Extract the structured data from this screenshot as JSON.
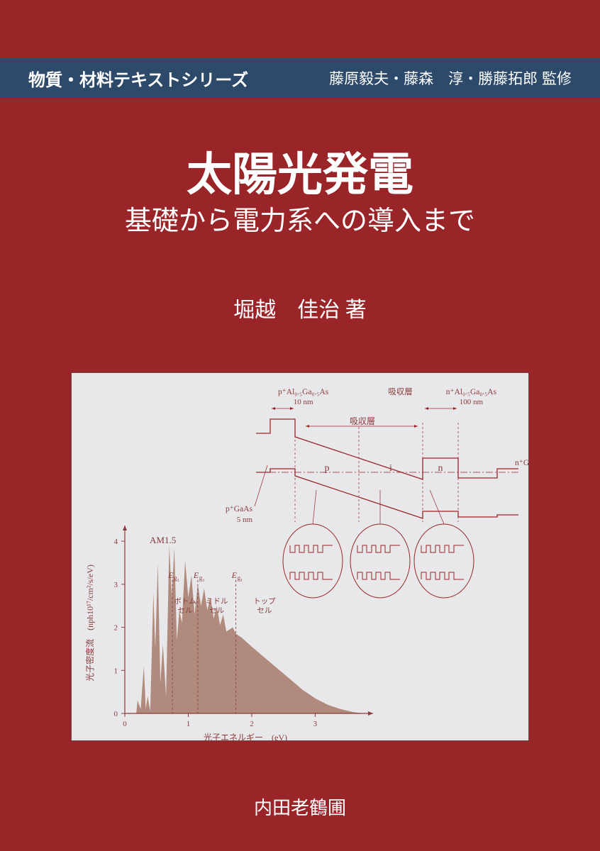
{
  "header": {
    "series": "物質・材料テキストシリーズ",
    "supervisors": "藤原毅夫・藤森　淳・勝藤拓郎 監修"
  },
  "title": "太陽光発電",
  "subtitle": "基礎から電力系への導入まで",
  "author": "堀越　佳治 著",
  "publisher": "内田老鶴圃",
  "colors": {
    "background": "#9a2529",
    "header_bar": "#2d4a6b",
    "figure_bg": "#e8e8ea",
    "diagram_line": "#9a2529",
    "spectrum_fill": "#a67a6a",
    "axis_color": "#8a3a3a"
  },
  "spectrum_chart": {
    "type": "area",
    "title": "AM1.5",
    "xlabel": "光子エネルギー　(eV)",
    "ylabel": "光子密度流　(nph10¹⁷/cm²/s/eV)",
    "xlim": [
      0,
      3.8
    ],
    "ylim": [
      0,
      4.2
    ],
    "xticks": [
      0,
      1,
      2,
      3
    ],
    "yticks": [
      0,
      1,
      2,
      3,
      4
    ],
    "label_fontsize": 11,
    "tick_fontsize": 11,
    "divisions": [
      {
        "label": "E_g₃",
        "x": 0.75
      },
      {
        "label": "E_g₂",
        "x": 1.15
      },
      {
        "label": "E_g₁",
        "x": 1.75
      }
    ],
    "cell_labels": [
      {
        "text": "ボトムセル",
        "x_center": 0.95
      },
      {
        "text": "ミドルセル",
        "x_center": 1.45
      },
      {
        "text": "トップセル",
        "x_center": 2.2
      }
    ],
    "spectrum_points": [
      [
        0.05,
        0
      ],
      [
        0.18,
        0
      ],
      [
        0.2,
        0.3
      ],
      [
        0.25,
        0.1
      ],
      [
        0.3,
        1.1
      ],
      [
        0.33,
        0.1
      ],
      [
        0.36,
        0.4
      ],
      [
        0.4,
        0.05
      ],
      [
        0.45,
        2.8
      ],
      [
        0.48,
        1.5
      ],
      [
        0.52,
        3.5
      ],
      [
        0.56,
        0.7
      ],
      [
        0.6,
        1.6
      ],
      [
        0.65,
        0.4
      ],
      [
        0.7,
        3.9
      ],
      [
        0.74,
        2.7
      ],
      [
        0.78,
        3.85
      ],
      [
        0.82,
        1.7
      ],
      [
        0.86,
        2.4
      ],
      [
        0.9,
        2.1
      ],
      [
        0.95,
        3.55
      ],
      [
        1.0,
        2.7
      ],
      [
        1.05,
        3.2
      ],
      [
        1.1,
        2.3
      ],
      [
        1.15,
        3.0
      ],
      [
        1.2,
        2.5
      ],
      [
        1.25,
        2.9
      ],
      [
        1.3,
        2.4
      ],
      [
        1.35,
        2.7
      ],
      [
        1.4,
        2.2
      ],
      [
        1.45,
        2.5
      ],
      [
        1.5,
        2.05
      ],
      [
        1.55,
        2.3
      ],
      [
        1.6,
        1.9
      ],
      [
        1.7,
        2.0
      ],
      [
        1.75,
        1.85
      ],
      [
        1.85,
        1.75
      ],
      [
        2.0,
        1.55
      ],
      [
        2.2,
        1.3
      ],
      [
        2.4,
        1.05
      ],
      [
        2.6,
        0.8
      ],
      [
        2.8,
        0.55
      ],
      [
        3.0,
        0.35
      ],
      [
        3.2,
        0.2
      ],
      [
        3.4,
        0.1
      ],
      [
        3.6,
        0.03
      ],
      [
        3.75,
        0
      ]
    ]
  },
  "band_diagram": {
    "type": "diagram",
    "top_labels": [
      {
        "text": "p⁺Al₀.₅Ga₀.₅As",
        "sub": "10 nm",
        "x": 0.18
      },
      {
        "text": "吸収層",
        "x": 0.55
      },
      {
        "text": "n⁺Al₀.₅Ga₀.₅As",
        "sub": "100 nm",
        "x": 0.82
      }
    ],
    "left_label": {
      "text": "p⁺GaAs",
      "sub": "5 nm"
    },
    "right_label": "n⁺GaAs 基板",
    "regions": [
      "p",
      "i",
      "n"
    ],
    "well_inset_count": 3
  }
}
